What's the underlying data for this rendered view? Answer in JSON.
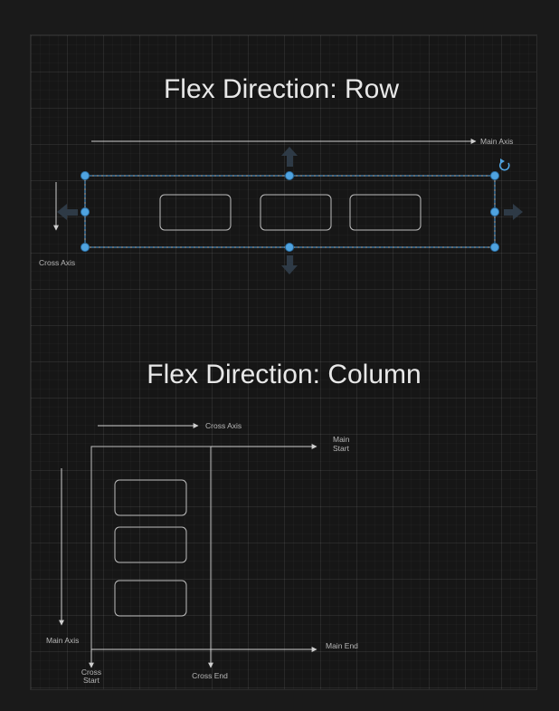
{
  "row_diagram": {
    "title": "Flex Direction: Row",
    "main_axis_label": "Main Axis",
    "cross_axis_label": "Cross Axis",
    "item_count": 3
  },
  "column_diagram": {
    "title": "Flex Direction: Column",
    "cross_axis_label": "Cross Axis",
    "main_axis_label": "Main Axis",
    "main_start_label": [
      "Main",
      "Start"
    ],
    "main_end_label": "Main End",
    "cross_start_label": [
      "Cross",
      "Start"
    ],
    "cross_end_label": "Cross End",
    "item_count": 3
  },
  "colors": {
    "background": "#1a1a1a",
    "canvas": "#161616",
    "selection": "#4fa3e0",
    "line": "#cfcfcf",
    "text": "#e8e8e8"
  }
}
